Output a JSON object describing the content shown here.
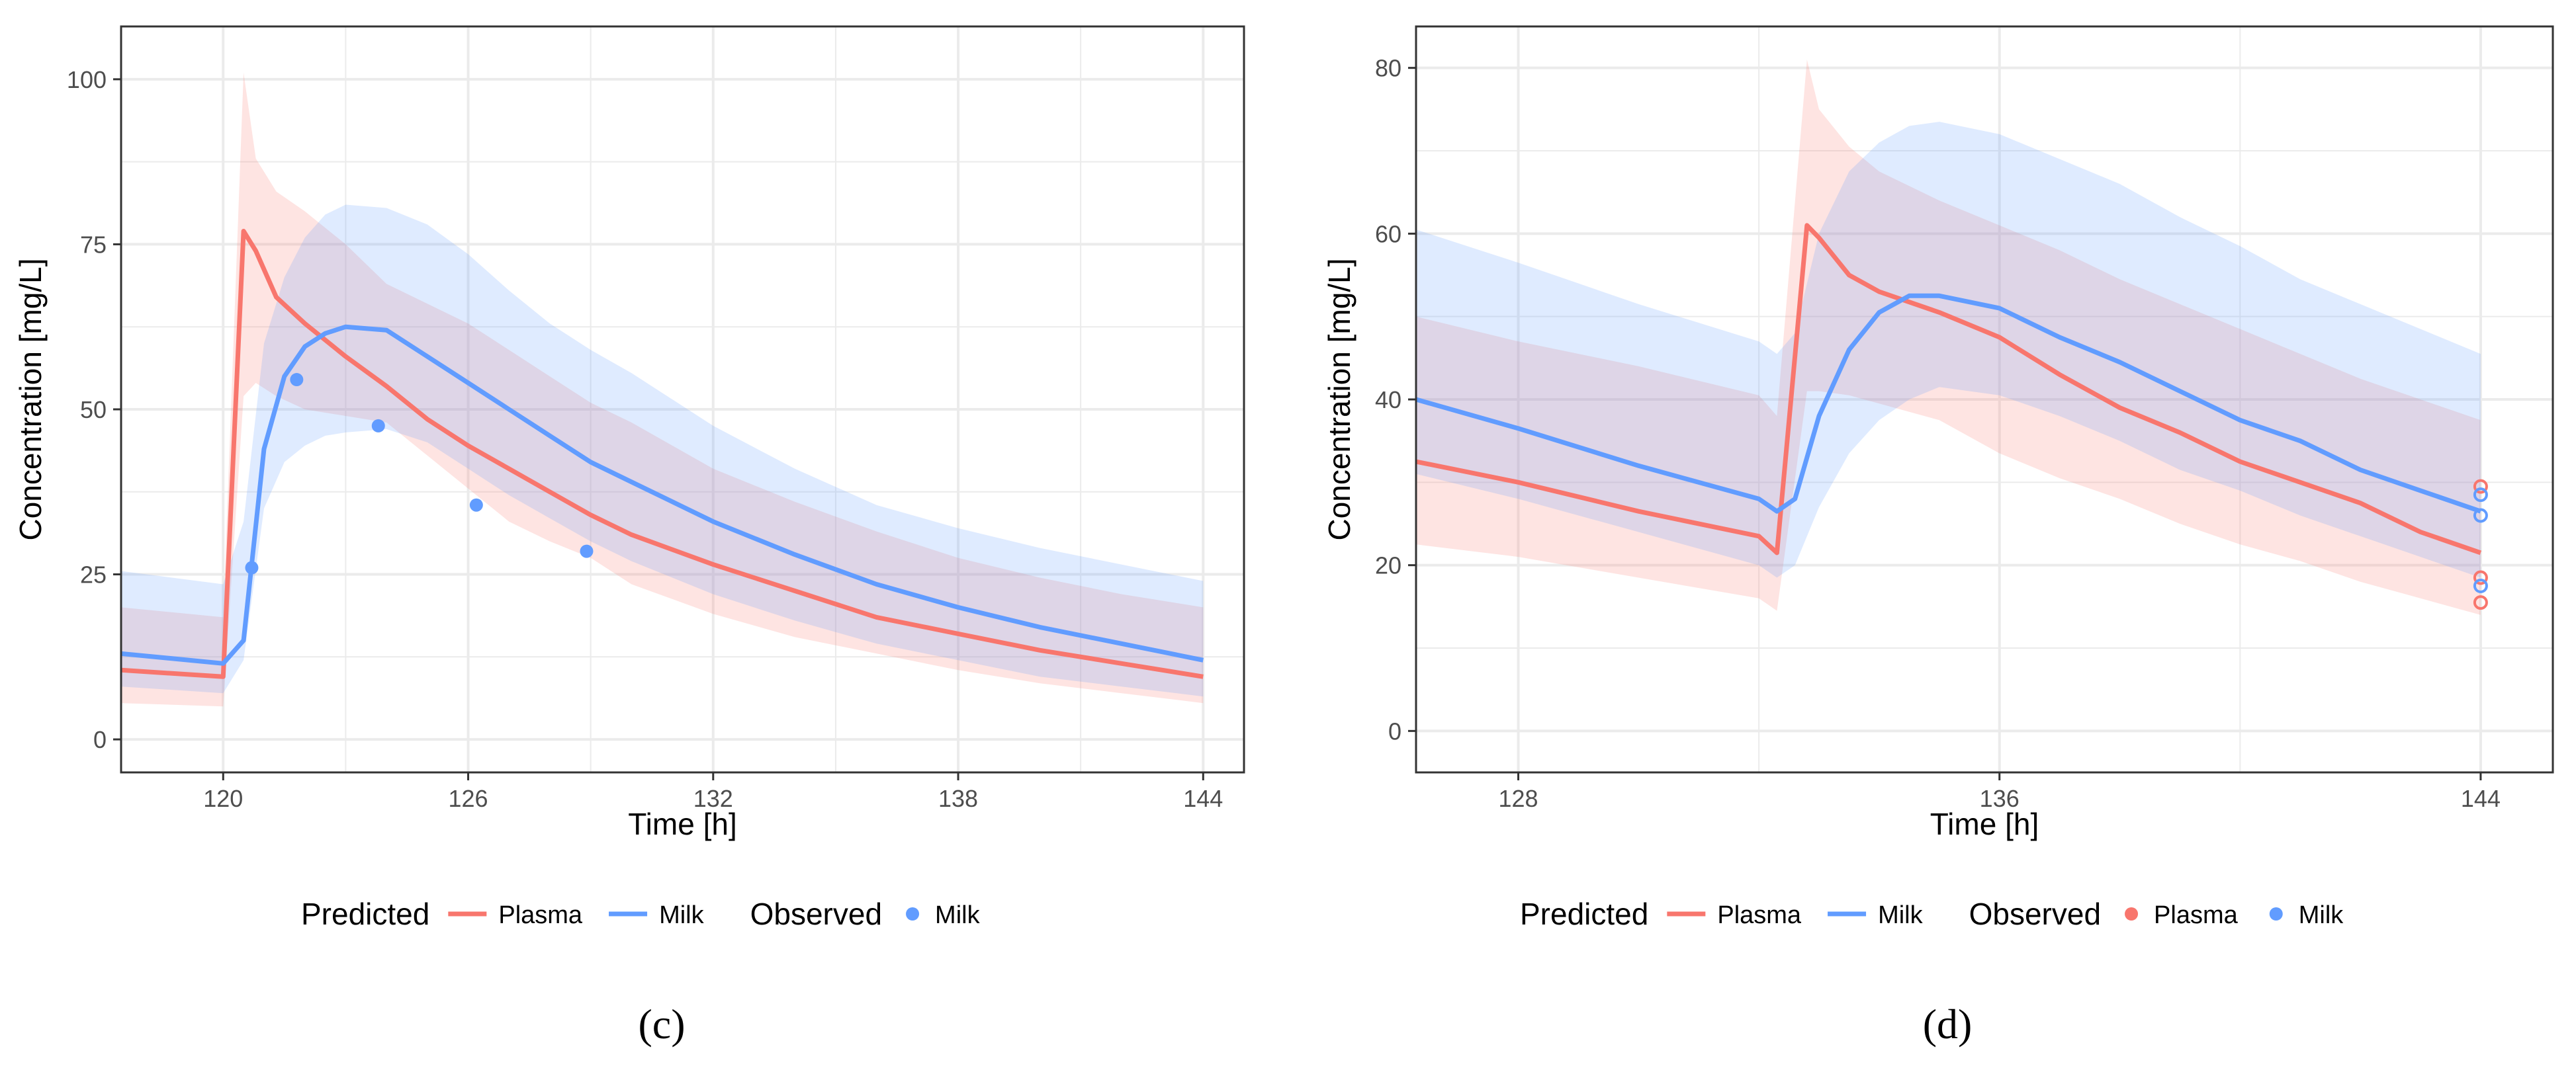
{
  "colors": {
    "plasma": "#f8766d",
    "milk": "#619cff",
    "grid": "#ebebeb",
    "border": "#333333",
    "tick_text": "#4d4d4d"
  },
  "chart_data": [
    {
      "type": "line",
      "panel_label": "(c)",
      "xlabel": "Time [h]",
      "ylabel": "Concentration [mg/L]",
      "xlim": [
        117.5,
        145
      ],
      "ylim": [
        -5,
        108
      ],
      "xticks": [
        120,
        126,
        132,
        138,
        144
      ],
      "yticks": [
        0,
        25,
        50,
        75,
        100
      ],
      "grid": true,
      "legend_position": "bottom",
      "legend": {
        "predicted_title": "Predicted",
        "predicted_entries": [
          "Plasma",
          "Milk"
        ],
        "observed_title": "Observed",
        "observed_entries": [
          "Milk"
        ]
      },
      "series": [
        {
          "name": "Plasma",
          "kind": "predicted",
          "color_key": "plasma",
          "x": [
            117.5,
            120,
            120.5,
            120.8,
            121.3,
            122,
            123,
            124,
            125,
            126,
            127,
            128,
            129,
            130,
            132,
            134,
            136,
            138,
            140,
            142,
            144
          ],
          "y": [
            10.5,
            9.5,
            77,
            74,
            67,
            63,
            58,
            53.5,
            48.5,
            44.5,
            41,
            37.5,
            34,
            31,
            26.5,
            22.5,
            18.5,
            16,
            13.5,
            11.5,
            9.5
          ],
          "lower": [
            5.5,
            5,
            52,
            54,
            52,
            50,
            49,
            48,
            43,
            38,
            33,
            30,
            27.5,
            23.5,
            19,
            15.5,
            13,
            10.5,
            8.5,
            7,
            5.5
          ],
          "upper": [
            20,
            18.5,
            101,
            88,
            83,
            80,
            75,
            69,
            66,
            63,
            59,
            55,
            51,
            48,
            41,
            36,
            31.5,
            27.5,
            24.5,
            22,
            20
          ]
        },
        {
          "name": "Milk",
          "kind": "predicted",
          "color_key": "milk",
          "x": [
            117.5,
            120,
            120.5,
            121,
            121.5,
            122,
            122.5,
            123,
            124,
            125,
            126,
            127,
            128,
            129,
            130,
            132,
            134,
            136,
            138,
            140,
            142,
            144
          ],
          "y": [
            13,
            11.5,
            15,
            44,
            55,
            59.5,
            61.5,
            62.5,
            62,
            58,
            54,
            50,
            46,
            42,
            39,
            33,
            28,
            23.5,
            20,
            17,
            14.5,
            12
          ],
          "lower": [
            8,
            7,
            12,
            35,
            42,
            44.5,
            46,
            46.5,
            47,
            45,
            41,
            37,
            33.5,
            30,
            27,
            22,
            18,
            14.5,
            12,
            9.5,
            8,
            6.5
          ],
          "upper": [
            25.5,
            23.5,
            33,
            60,
            70,
            76,
            79.5,
            81,
            80.5,
            78,
            73.5,
            68,
            63,
            59,
            55.5,
            47.5,
            41,
            35.5,
            32,
            29,
            26.5,
            24
          ]
        },
        {
          "name": "Milk",
          "kind": "observed",
          "color_key": "milk",
          "x": [
            120.7,
            121.8,
            123.8,
            126.2,
            128.9
          ],
          "y": [
            26,
            54.5,
            47.5,
            35.5,
            28.5
          ]
        }
      ]
    },
    {
      "type": "line",
      "panel_label": "(d)",
      "xlabel": "Time [h]",
      "ylabel": "Concentration [mg/L]",
      "xlim": [
        126.3,
        145.2
      ],
      "ylim": [
        -5,
        85
      ],
      "xticks": [
        128,
        136,
        144
      ],
      "yticks": [
        0,
        20,
        40,
        60,
        80
      ],
      "grid": true,
      "legend_position": "bottom",
      "legend": {
        "predicted_title": "Predicted",
        "predicted_entries": [
          "Plasma",
          "Milk"
        ],
        "observed_title": "Observed",
        "observed_entries": [
          "Plasma",
          "Milk"
        ]
      },
      "series": [
        {
          "name": "Plasma",
          "kind": "predicted",
          "color_key": "plasma",
          "x": [
            126.3,
            128,
            130,
            132,
            132.3,
            132.8,
            133,
            133.5,
            134,
            135,
            136,
            137,
            138,
            139,
            140,
            141,
            142,
            143,
            144
          ],
          "y": [
            32.5,
            30,
            26.5,
            23.5,
            21.5,
            61,
            59.5,
            55,
            53,
            50.5,
            47.5,
            43,
            39,
            36,
            32.5,
            30,
            27.5,
            24,
            21.5
          ],
          "lower": [
            22.5,
            21,
            18.5,
            16,
            14.5,
            41,
            41,
            40.5,
            39.5,
            37.5,
            33.5,
            30.5,
            28,
            25,
            22.5,
            20.5,
            18,
            16,
            14
          ],
          "upper": [
            50,
            47,
            44,
            40.5,
            38,
            81,
            75,
            70.5,
            67.5,
            64,
            61,
            58,
            54.5,
            51.5,
            48.5,
            45.5,
            42.5,
            40,
            37.5
          ]
        },
        {
          "name": "Milk",
          "kind": "predicted",
          "color_key": "milk",
          "x": [
            126.3,
            128,
            130,
            132,
            132.3,
            132.6,
            133,
            133.5,
            134,
            134.5,
            135,
            136,
            137,
            138,
            139,
            140,
            141,
            142,
            143,
            144
          ],
          "y": [
            40,
            36.5,
            32,
            28,
            26.5,
            28,
            38,
            46,
            50.5,
            52.5,
            52.5,
            51,
            47.5,
            44.5,
            41,
            37.5,
            35,
            31.5,
            29,
            26.5
          ],
          "lower": [
            31,
            28,
            24,
            20,
            18.5,
            20,
            27,
            33.5,
            37.5,
            40,
            41.5,
            40.5,
            38,
            35,
            31.5,
            29,
            26,
            23.5,
            21,
            18.5
          ],
          "upper": [
            60.5,
            56.5,
            51.5,
            47,
            45.5,
            48,
            60,
            67.5,
            71,
            73,
            73.5,
            72,
            69,
            66,
            62,
            58.5,
            54.5,
            51.5,
            48.5,
            45.5
          ]
        },
        {
          "name": "Plasma",
          "kind": "observed",
          "color_key": "plasma",
          "x": [
            144,
            144,
            144
          ],
          "y": [
            29.5,
            18.5,
            15.5
          ]
        },
        {
          "name": "Milk",
          "kind": "observed",
          "color_key": "milk",
          "x": [
            144,
            144,
            144
          ],
          "y": [
            28.5,
            26,
            17.5
          ]
        }
      ]
    }
  ]
}
